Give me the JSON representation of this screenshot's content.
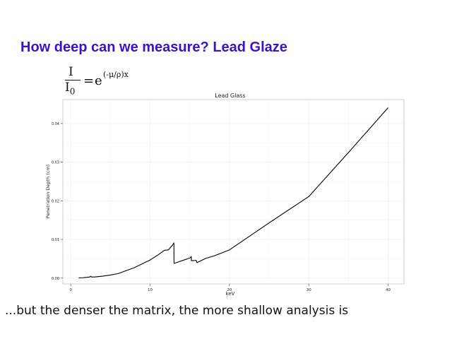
{
  "slide": {
    "title": "How deep can we measure? Lead Glaze",
    "caption": "...but the denser the matrix, the more shallow analysis is"
  },
  "formula": {
    "numerator": "I",
    "denominator": "I",
    "denominator_sub": "0",
    "equals": "=",
    "base": "e",
    "exponent": "(-μ/ρ)x"
  },
  "colors": {
    "title": "#3b11c9",
    "line": "#000000",
    "grid": "#f0f0f0",
    "panel_border": "#bbbbbb"
  },
  "chart_data": {
    "type": "line",
    "title": "Lead Glass",
    "xlabel": "keV",
    "ylabel": "Penetration Depth (cm)",
    "xlim": [
      -1,
      42
    ],
    "ylim": [
      -0.0015,
      0.0462
    ],
    "xticks": [
      0,
      10,
      20,
      30,
      40
    ],
    "yticks": [
      0.0,
      0.01,
      0.02,
      0.03,
      0.04
    ],
    "ytick_labels": [
      "0.00",
      "0.01",
      "0.02",
      "0.03",
      "0.04"
    ],
    "grid": true,
    "legend": "none",
    "series": [
      {
        "x": [
          1.0,
          1.5,
          2.0,
          2.4,
          2.5,
          2.6,
          3.0,
          4.0,
          5.0,
          6.0,
          8.0,
          10.0,
          11.0,
          11.8,
          12.3,
          12.8,
          13.0,
          13.01,
          14.0,
          15.0,
          15.19,
          15.2,
          15.8,
          15.86,
          15.9,
          16.5,
          17.0,
          18.0,
          20.0,
          25.0,
          30.0,
          35.0,
          40.0
        ],
        "y": [
          5e-05,
          0.0001,
          0.0002,
          0.0003,
          0.0005,
          0.0003,
          0.0003,
          0.0005,
          0.0008,
          0.0012,
          0.0027,
          0.0047,
          0.006,
          0.0072,
          0.0073,
          0.0085,
          0.0091,
          0.0038,
          0.0045,
          0.0052,
          0.0056,
          0.0045,
          0.0046,
          0.0043,
          0.004,
          0.0046,
          0.0051,
          0.0057,
          0.0073,
          0.0143,
          0.0211,
          0.0325,
          0.0441
        ]
      }
    ]
  }
}
